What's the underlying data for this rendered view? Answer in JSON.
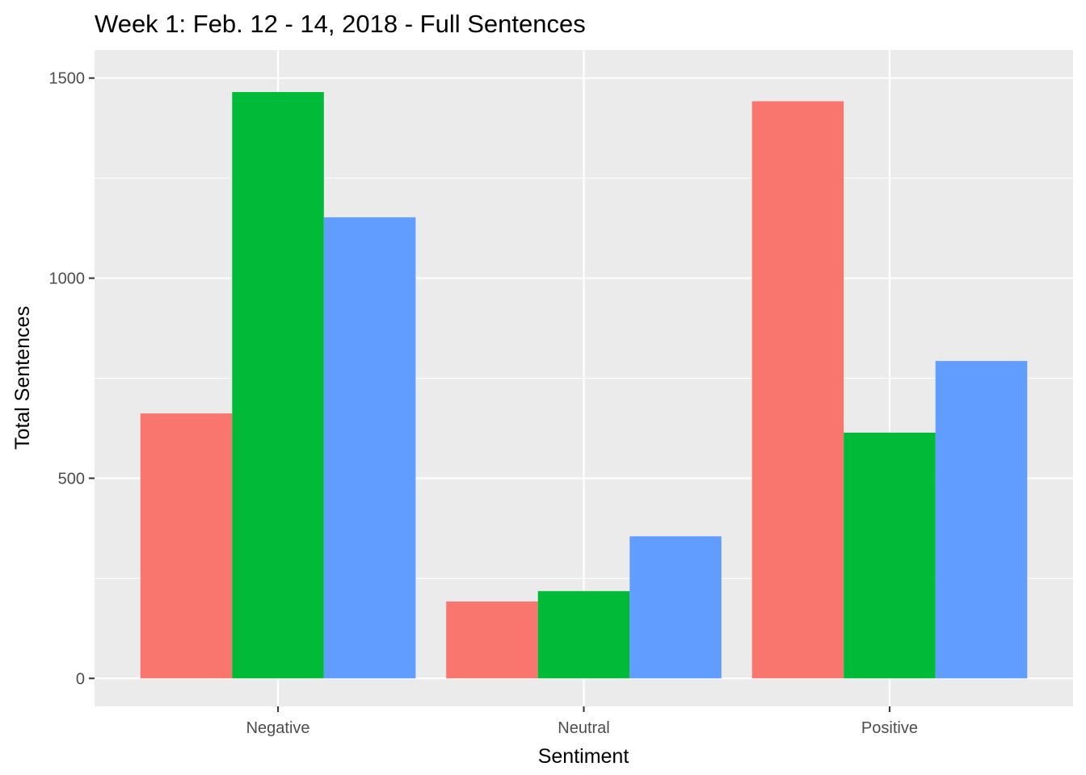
{
  "chart_data": {
    "type": "bar",
    "title": "Week 1: Feb. 12 - 14, 2018 - Full Sentences",
    "xlabel": "Sentiment",
    "ylabel": "Total Sentences",
    "categories": [
      "Negative",
      "Neutral",
      "Positive"
    ],
    "series": [
      {
        "values": [
          662,
          192,
          1442
        ]
      },
      {
        "values": [
          1465,
          218,
          614
        ]
      },
      {
        "values": [
          1152,
          355,
          793
        ]
      }
    ],
    "colors": [
      "#F8766D",
      "#00BA38",
      "#619CFF"
    ],
    "ylim": [
      -70,
      1570
    ],
    "yticks": [
      0,
      500,
      1000,
      1500
    ],
    "ytick_labels": [
      "0",
      "500",
      "1000",
      "1500"
    ],
    "grid": true,
    "panel_background": "#EBEBEB",
    "grid_color": "#FFFFFF",
    "legend": "none"
  }
}
